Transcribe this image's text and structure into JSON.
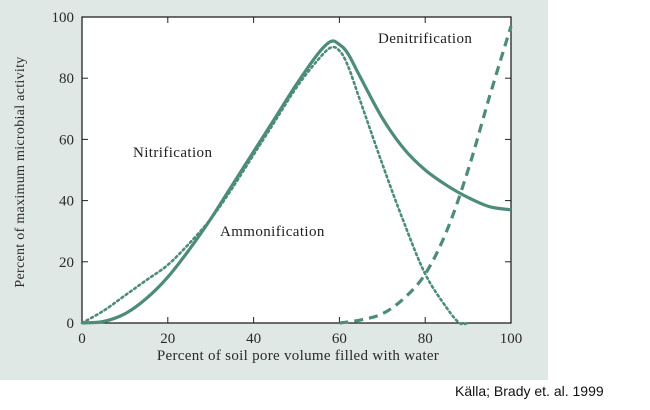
{
  "chart_data": {
    "type": "line",
    "xlabel": "Percent of soil pore volume filled with water",
    "ylabel": "Percent of maximum microbial activity",
    "xlim": [
      0,
      100
    ],
    "ylim": [
      0,
      100
    ],
    "x_ticks": [
      0,
      20,
      40,
      60,
      80,
      100
    ],
    "y_ticks": [
      0,
      20,
      40,
      60,
      80,
      100
    ],
    "grid": false,
    "legend": "none (curves labeled directly)",
    "colors": {
      "curve": "#4d8b7a",
      "panel_background": "#dfe8e4",
      "axis": "#222222"
    },
    "series": [
      {
        "name": "Ammonification",
        "style": "solid",
        "x": [
          0,
          5,
          10,
          15,
          20,
          25,
          30,
          35,
          40,
          45,
          50,
          55,
          58,
          60,
          62,
          65,
          70,
          75,
          80,
          85,
          90,
          95,
          100
        ],
        "y": [
          0,
          0.5,
          3,
          8,
          15,
          24,
          34,
          45,
          56,
          67,
          78,
          88,
          92,
          91,
          88,
          80,
          67,
          57,
          50,
          45,
          41,
          38,
          37
        ]
      },
      {
        "name": "Nitrification",
        "style": "dotted",
        "x": [
          0,
          5,
          10,
          15,
          20,
          25,
          30,
          35,
          40,
          45,
          50,
          55,
          58,
          60,
          62,
          65,
          70,
          75,
          80,
          85,
          88,
          90
        ],
        "y": [
          0,
          4,
          9,
          14,
          19,
          26,
          34,
          44,
          55,
          66,
          77,
          86,
          90,
          89,
          84,
          72,
          52,
          33,
          16,
          5,
          0,
          0
        ]
      },
      {
        "name": "Denitrification",
        "style": "dashed",
        "x": [
          60,
          65,
          70,
          75,
          80,
          85,
          90,
          95,
          100
        ],
        "y": [
          0,
          1,
          3,
          8,
          16,
          30,
          50,
          74,
          97
        ]
      }
    ]
  },
  "source": "Källa; Brady et. al. 1999"
}
